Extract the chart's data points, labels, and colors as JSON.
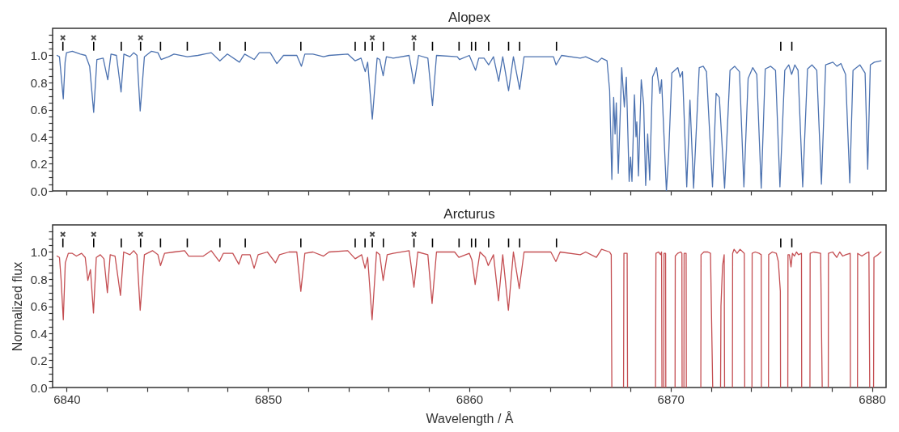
{
  "chart_data": [
    {
      "type": "line",
      "title": "Alopex",
      "xlim": [
        6839.5,
        6880.5
      ],
      "ylim": [
        0,
        1.2
      ],
      "tick_labels": "y",
      "xticks": [
        6840,
        {
          "value": 6842,
          "label": null
        },
        {
          "value": 6844,
          "label": null
        },
        {
          "value": 6846,
          "label": null
        },
        {
          "value": 6848,
          "label": null
        },
        6850,
        {
          "value": 6852,
          "label": null
        },
        {
          "value": 6854,
          "label": null
        },
        {
          "value": 6856,
          "label": null
        },
        {
          "value": 6858,
          "label": null
        },
        6860,
        {
          "value": 6862,
          "label": null
        },
        {
          "value": 6864,
          "label": null
        },
        {
          "value": 6866,
          "label": null
        },
        {
          "value": 6868,
          "label": null
        },
        6870,
        {
          "value": 6872,
          "label": null
        },
        {
          "value": 6874,
          "label": null
        },
        {
          "value": 6876,
          "label": null
        },
        {
          "value": 6878,
          "label": null
        },
        6880
      ],
      "yticks": [
        {
          "value": 0,
          "label": "0.0"
        },
        {
          "value": 0.05,
          "label": null
        },
        {
          "value": 0.1,
          "label": null
        },
        {
          "value": 0.15,
          "label": null
        },
        0.2,
        {
          "value": 0.25,
          "label": null
        },
        {
          "value": 0.3,
          "label": null
        },
        {
          "value": 0.35,
          "label": null
        },
        0.4,
        {
          "value": 0.45,
          "label": null
        },
        {
          "value": 0.5,
          "label": null
        },
        {
          "value": 0.55,
          "label": null
        },
        0.6,
        {
          "value": 0.65,
          "label": null
        },
        {
          "value": 0.7,
          "label": null
        },
        {
          "value": 0.75,
          "label": null
        },
        0.8,
        {
          "value": 0.85,
          "label": null
        },
        {
          "value": 0.9,
          "label": null
        },
        {
          "value": 0.95,
          "label": null
        },
        {
          "value": 1,
          "label": "1.0"
        },
        {
          "value": 1.05,
          "label": null
        },
        {
          "value": 1.1,
          "label": null
        },
        {
          "value": 1.15,
          "label": null
        }
      ],
      "series": [
        {
          "color": "#4c72b0",
          "x": [
            6839.52,
            6839.64,
            6839.83,
            6839.92,
            6839.99,
            6840.28,
            6840.68,
            6840.94,
            6841.14,
            6841.34,
            6841.5,
            6841.81,
            6842.04,
            6842.2,
            6842.47,
            6842.7,
            6842.84,
            6843.14,
            6843.33,
            6843.49,
            6843.65,
            6843.86,
            6844.2,
            6844.53,
            6844.69,
            6845.06,
            6845.33,
            6845.99,
            6846.52,
            6847.18,
            6847.61,
            6847.98,
            6848.58,
            6848.84,
            6849.31,
            6849.57,
            6850.11,
            6850.44,
            6850.77,
            6851.43,
            6851.66,
            6851.83,
            6852.23,
            6852.76,
            6853.03,
            6853.96,
            6854.33,
            6854.62,
            6854.83,
            6854.95,
            6855.18,
            6855.42,
            6855.55,
            6855.72,
            6855.88,
            6856.22,
            6857.01,
            6857.25,
            6857.48,
            6857.94,
            6858.17,
            6858.37,
            6859.4,
            6859.51,
            6860.0,
            6860.31,
            6860.47,
            6860.73,
            6860.96,
            6861.2,
            6861.46,
            6861.66,
            6861.95,
            6862.19,
            6862.5,
            6862.72,
            6864.18,
            6864.31,
            6864.58,
            6865.51,
            6865.78,
            6866.37,
            6866.57,
            6866.84,
            6866.97,
            6867.08,
            6867.17,
            6867.24,
            6867.3,
            6867.4,
            6867.57,
            6867.7,
            6867.8,
            6867.94,
            6868.01,
            6868.08,
            6868.2,
            6868.28,
            6868.32,
            6868.4,
            6868.54,
            6868.66,
            6868.76,
            6868.86,
            6868.96,
            6869.1,
            6869.3,
            6869.47,
            6869.55,
            6869.66,
            6869.79,
            6869.9,
            6870.06,
            6870.36,
            6870.47,
            6870.59,
            6870.8,
            6870.96,
            6871.14,
            6871.42,
            6871.62,
            6871.78,
            6872.08,
            6872.26,
            6872.42,
            6872.68,
            6872.95,
            6873.18,
            6873.42,
            6873.64,
            6873.85,
            6874.08,
            6874.28,
            6874.5,
            6874.7,
            6874.97,
            6875.21,
            6875.43,
            6875.67,
            6875.87,
            6876.01,
            6876.17,
            6876.33,
            6876.56,
            6876.8,
            6877.02,
            6877.26,
            6877.49,
            6877.7,
            6878.06,
            6878.26,
            6878.46,
            6878.69,
            6878.9,
            6879.06,
            6879.4,
            6879.66,
            6879.79,
            6879.92,
            6880.12,
            6880.45
          ],
          "values": [
            1.0,
            0.99,
            0.68,
            0.95,
            1.02,
            1.03,
            1.01,
            1.0,
            0.92,
            0.58,
            0.97,
            0.98,
            0.82,
            1.01,
            1.0,
            0.73,
            1.01,
            0.99,
            1.02,
            1.0,
            0.59,
            0.99,
            1.03,
            1.02,
            0.97,
            0.99,
            1.01,
            0.99,
            1.0,
            1.02,
            0.96,
            1.01,
            0.95,
            1.01,
            0.97,
            1.02,
            1.02,
            0.94,
            1.0,
            1.0,
            0.92,
            1.01,
            1.01,
            0.99,
            1.0,
            1.01,
            0.96,
            0.98,
            0.88,
            0.95,
            0.53,
            0.98,
            0.97,
            0.85,
            0.99,
            0.98,
            1.0,
            0.79,
            1.0,
            0.98,
            0.63,
            1.0,
            0.99,
            0.97,
            1.0,
            0.89,
            0.98,
            0.98,
            0.93,
            0.99,
            0.81,
            0.99,
            0.74,
            0.99,
            0.75,
            0.99,
            0.99,
            0.93,
            1.0,
            0.98,
            0.99,
            0.95,
            0.98,
            0.96,
            0.74,
            0.085,
            0.69,
            0.42,
            0.65,
            0.13,
            0.91,
            0.62,
            0.84,
            0.07,
            0.25,
            0.07,
            0.71,
            0.4,
            0.51,
            0.11,
            0.82,
            0.64,
            0.04,
            0.42,
            0.08,
            0.84,
            0.91,
            0.72,
            0.82,
            0.44,
            0.0,
            0.26,
            0.87,
            0.91,
            0.84,
            0.88,
            0.03,
            0.67,
            0.02,
            0.91,
            0.92,
            0.88,
            0.03,
            0.72,
            0.69,
            0.02,
            0.89,
            0.92,
            0.88,
            0.03,
            0.83,
            0.91,
            0.86,
            0.02,
            0.9,
            0.92,
            0.89,
            0.03,
            0.89,
            0.93,
            0.86,
            0.93,
            0.89,
            0.03,
            0.9,
            0.93,
            0.89,
            0.05,
            0.93,
            0.95,
            0.92,
            0.94,
            0.86,
            0.06,
            0.89,
            0.93,
            0.87,
            0.16,
            0.93,
            0.95,
            0.96
          ]
        },
        {
          "type": "bar",
          "color": "#000000",
          "x": [
            6839.81,
            6841.34,
            6842.71,
            6843.67,
            6844.66,
            6845.99,
            6847.61,
            6848.87,
            6851.63,
            6854.33,
            6854.82,
            6855.18,
            6855.73,
            6857.25,
            6858.17,
            6859.49,
            6860.11,
            6860.31,
            6860.96,
            6861.95,
            6862.5,
            6864.33,
            6875.47,
            6876.02
          ],
          "base": [
            1.035,
            1.035,
            1.035,
            1.035,
            1.035,
            1.035,
            1.035,
            1.035,
            1.035,
            1.035,
            1.035,
            1.035,
            1.035,
            1.035,
            1.035,
            1.035,
            1.035,
            1.035,
            1.035,
            1.035,
            1.035,
            1.035,
            1.035,
            1.035
          ],
          "values": [
            0.065,
            0.065,
            0.065,
            0.065,
            0.065,
            0.065,
            0.065,
            0.065,
            0.065,
            0.065,
            0.065,
            0.065,
            0.065,
            0.065,
            0.065,
            0.065,
            0.065,
            0.065,
            0.065,
            0.065,
            0.065,
            0.065,
            0.065,
            0.065
          ]
        },
        {
          "type": "scatter",
          "color": "#000000",
          "marker": "cross",
          "x": [
            6839.81,
            6841.34,
            6843.67,
            6855.18,
            6857.25
          ],
          "values": [
            1.13,
            1.13,
            1.13,
            1.13,
            1.13
          ]
        }
      ]
    },
    {
      "type": "line",
      "title": "Arcturus",
      "xlabel": "Wavelength / Å",
      "ylabel": "Normalized flux",
      "xlim": [
        6839.5,
        6880.5
      ],
      "ylim": [
        0,
        1.2
      ],
      "xticks": [
        6840,
        {
          "value": 6842,
          "label": null
        },
        {
          "value": 6844,
          "label": null
        },
        {
          "value": 6846,
          "label": null
        },
        {
          "value": 6848,
          "label": null
        },
        6850,
        {
          "value": 6852,
          "label": null
        },
        {
          "value": 6854,
          "label": null
        },
        {
          "value": 6856,
          "label": null
        },
        {
          "value": 6858,
          "label": null
        },
        6860,
        {
          "value": 6862,
          "label": null
        },
        {
          "value": 6864,
          "label": null
        },
        {
          "value": 6866,
          "label": null
        },
        {
          "value": 6868,
          "label": null
        },
        6870,
        {
          "value": 6872,
          "label": null
        },
        {
          "value": 6874,
          "label": null
        },
        {
          "value": 6876,
          "label": null
        },
        {
          "value": 6878,
          "label": null
        },
        6880
      ],
      "yticks": [
        {
          "value": 0,
          "label": "0.0"
        },
        {
          "value": 0.05,
          "label": null
        },
        {
          "value": 0.1,
          "label": null
        },
        {
          "value": 0.15,
          "label": null
        },
        0.2,
        {
          "value": 0.25,
          "label": null
        },
        {
          "value": 0.3,
          "label": null
        },
        {
          "value": 0.35,
          "label": null
        },
        0.4,
        {
          "value": 0.45,
          "label": null
        },
        {
          "value": 0.5,
          "label": null
        },
        {
          "value": 0.55,
          "label": null
        },
        0.6,
        {
          "value": 0.65,
          "label": null
        },
        {
          "value": 0.7,
          "label": null
        },
        {
          "value": 0.75,
          "label": null
        },
        0.8,
        {
          "value": 0.85,
          "label": null
        },
        {
          "value": 0.9,
          "label": null
        },
        {
          "value": 0.95,
          "label": null
        },
        {
          "value": 1,
          "label": "1.0"
        },
        {
          "value": 1.05,
          "label": null
        },
        {
          "value": 1.1,
          "label": null
        },
        {
          "value": 1.15,
          "label": null
        }
      ],
      "series": [
        {
          "color": "#c44e52",
          "x": [
            6839.52,
            6839.64,
            6839.72,
            6839.83,
            6839.93,
            6840.08,
            6840.28,
            6840.48,
            6840.74,
            6840.92,
            6841.05,
            6841.18,
            6841.33,
            6841.47,
            6841.67,
            6841.85,
            6842.02,
            6842.16,
            6842.4,
            6842.67,
            6842.83,
            6843.14,
            6843.33,
            6843.49,
            6843.65,
            6843.86,
            6844.26,
            6844.53,
            6844.66,
            6844.86,
            6845.33,
            6845.86,
            6846.06,
            6846.25,
            6846.79,
            6847.18,
            6847.58,
            6847.78,
            6848.25,
            6848.55,
            6848.71,
            6849.11,
            6849.31,
            6849.51,
            6849.97,
            6850.37,
            6850.57,
            6851.04,
            6851.43,
            6851.63,
            6851.83,
            6852.23,
            6852.76,
            6853.03,
            6853.96,
            6854.33,
            6854.65,
            6854.82,
            6854.95,
            6855.17,
            6855.39,
            6855.55,
            6855.72,
            6855.92,
            6856.22,
            6857.01,
            6857.25,
            6857.44,
            6857.94,
            6858.15,
            6858.37,
            6859.27,
            6859.48,
            6860.0,
            6860.13,
            6860.29,
            6860.53,
            6860.8,
            6860.94,
            6861.2,
            6861.45,
            6861.66,
            6861.94,
            6862.19,
            6862.48,
            6862.72,
            6864.05,
            6864.3,
            6864.51,
            6865.51,
            6865.78,
            6866.31,
            6866.57,
            6866.97,
            6867.05,
            6867.08,
            6867.3,
            6867.66,
            6867.68,
            6867.84,
            6867.86,
            6868.5,
            6869.25,
            6869.27,
            6869.4,
            6869.5,
            6869.55,
            6869.57,
            6869.6,
            6869.66,
            6869.67,
            6869.75,
            6869.76,
            6870.0,
            6870.22,
            6870.23,
            6870.35,
            6870.5,
            6870.56,
            6870.57,
            6870.6,
            6870.66,
            6870.67,
            6870.77,
            6870.78,
            6871.1,
            6871.5,
            6871.51,
            6871.65,
            6871.85,
            6871.98,
            6872.09,
            6872.3,
            6872.48,
            6872.5,
            6872.58,
            6872.66,
            6872.68,
            6872.9,
            6873.07,
            6873.08,
            6873.15,
            6873.3,
            6873.45,
            6873.66,
            6873.68,
            6873.9,
            6874.04,
            6874.05,
            6874.2,
            6874.4,
            6874.5,
            6874.51,
            6874.7,
            6874.86,
            6874.87,
            6875.05,
            6875.25,
            6875.35,
            6875.45,
            6875.46,
            6875.6,
            6875.82,
            6875.83,
            6875.9,
            6875.98,
            6876.05,
            6876.15,
            6876.25,
            6876.35,
            6876.5,
            6876.51,
            6876.7,
            6876.92,
            6876.93,
            6877.1,
            6877.45,
            6877.53,
            6877.7,
            6877.83,
            6877.84,
            6878.05,
            6878.25,
            6878.4,
            6878.55,
            6878.7,
            6878.92,
            6878.93,
            6879.1,
            6879.28,
            6879.29,
            6879.5,
            6879.7,
            6879.85,
            6879.89,
            6880.0,
            6880.08,
            6880.1,
            6880.3,
            6880.45
          ],
          "values": [
            0.97,
            0.96,
            0.8,
            0.5,
            0.92,
            0.99,
            0.99,
            0.97,
            0.99,
            0.96,
            0.79,
            0.87,
            0.55,
            0.96,
            0.98,
            0.95,
            0.7,
            0.98,
            0.97,
            0.68,
            1.0,
            0.98,
            1.01,
            0.98,
            0.57,
            0.98,
            1.01,
            0.98,
            0.9,
            0.99,
            1.0,
            1.01,
            0.97,
            0.97,
            0.97,
            1.01,
            0.93,
            0.99,
            0.99,
            0.91,
            0.98,
            0.98,
            0.88,
            0.98,
            1.0,
            0.92,
            0.98,
            1.0,
            1.0,
            0.71,
            0.99,
            1.0,
            0.97,
            1.0,
            1.01,
            0.95,
            0.98,
            0.88,
            0.96,
            0.5,
            1.0,
            0.98,
            0.79,
            0.98,
            0.99,
            1.01,
            0.74,
            1.0,
            0.98,
            0.62,
            1.0,
            1.0,
            0.96,
            0.99,
            0.94,
            0.76,
            1.0,
            0.96,
            0.9,
            0.98,
            0.64,
            0.98,
            0.57,
            1.0,
            0.73,
            1.0,
            1.0,
            0.93,
            1.0,
            0.98,
            1.0,
            0.96,
            1.02,
            1.0,
            0.98,
            0,
            null,
            0,
            0.99,
            0.99,
            0,
            null,
            0,
            0.99,
            1.0,
            0.98,
            1.0,
            0,
            null,
            0,
            0.99,
            0.99,
            0,
            null,
            0,
            0.97,
            0.99,
            1.0,
            0.99,
            0,
            null,
            0,
            0.99,
            0.99,
            0,
            null,
            0,
            0.98,
            1.0,
            1.0,
            0.99,
            0,
            null,
            0,
            0.6,
            0.9,
            0.98,
            0,
            null,
            0,
            0.99,
            1.02,
            0.99,
            1.02,
            0.99,
            0,
            null,
            0,
            0.99,
            1.0,
            0.99,
            0.98,
            0,
            null,
            0,
            0.98,
            1.0,
            0.99,
            0.93,
            0.71,
            0,
            null,
            0,
            0.98,
            0.98,
            0.89,
            0.99,
            0.97,
            1.0,
            0.98,
            0.99,
            0,
            null,
            0,
            0.99,
            1.0,
            0.99,
            0,
            null,
            0,
            0.99,
            1.0,
            0.96,
            1.0,
            0.97,
            0.98,
            0.99,
            0,
            null,
            0,
            0.99,
            0.97,
            0.99,
            1.0,
            0,
            null,
            0,
            0.96,
            0.98,
            1.0
          ]
        },
        {
          "type": "bar",
          "color": "#000000",
          "x": [
            6839.81,
            6841.34,
            6842.71,
            6843.67,
            6844.66,
            6845.99,
            6847.61,
            6848.87,
            6851.63,
            6854.33,
            6854.82,
            6855.18,
            6855.73,
            6857.25,
            6858.17,
            6859.49,
            6860.11,
            6860.31,
            6860.96,
            6861.95,
            6862.5,
            6864.33,
            6875.47,
            6876.02
          ],
          "base": [
            1.035,
            1.035,
            1.035,
            1.035,
            1.035,
            1.035,
            1.035,
            1.035,
            1.035,
            1.035,
            1.035,
            1.035,
            1.035,
            1.035,
            1.035,
            1.035,
            1.035,
            1.035,
            1.035,
            1.035,
            1.035,
            1.035,
            1.035,
            1.035
          ],
          "values": [
            0.065,
            0.065,
            0.065,
            0.065,
            0.065,
            0.065,
            0.065,
            0.065,
            0.065,
            0.065,
            0.065,
            0.065,
            0.065,
            0.065,
            0.065,
            0.065,
            0.065,
            0.065,
            0.065,
            0.065,
            0.065,
            0.065,
            0.065,
            0.065
          ]
        },
        {
          "type": "scatter",
          "color": "#000000",
          "marker": "cross",
          "x": [
            6839.81,
            6841.34,
            6843.67,
            6855.18,
            6857.25
          ],
          "values": [
            1.13,
            1.13,
            1.13,
            1.13,
            1.13
          ]
        }
      ]
    }
  ]
}
